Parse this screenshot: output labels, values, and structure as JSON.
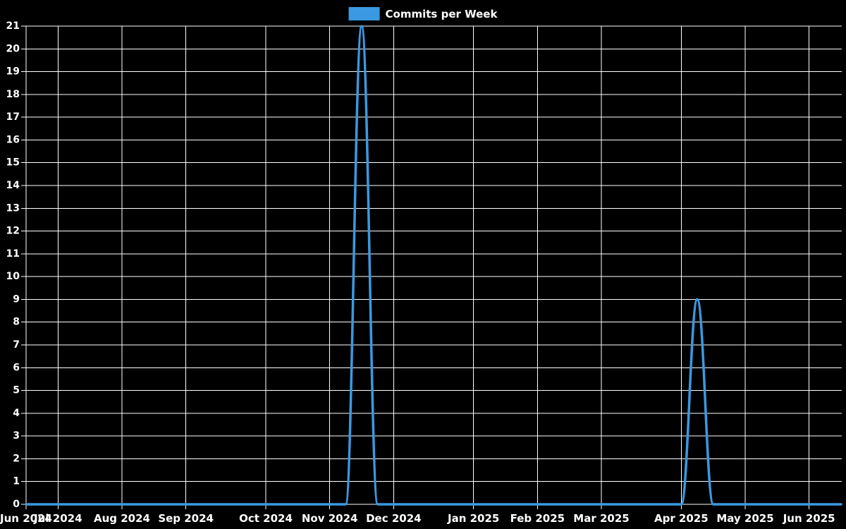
{
  "chart_data": {
    "type": "line",
    "title": "Commits per Week",
    "legend": {
      "label": "Commits per Week",
      "position": "top-center"
    },
    "background_color": "#000000",
    "grid_color": "#ffffff",
    "text_color": "#ffffff",
    "grid": "on",
    "series": [
      {
        "name": "Commits per Week",
        "color": "#3b99e1",
        "line_width": 3.5,
        "values": [
          0,
          0,
          0,
          0,
          0,
          0,
          0,
          0,
          0,
          0,
          0,
          0,
          0,
          0,
          0,
          0,
          0,
          0,
          0,
          0,
          0,
          21,
          0,
          0,
          0,
          0,
          0,
          0,
          0,
          0,
          0,
          0,
          0,
          0,
          0,
          0,
          0,
          0,
          0,
          0,
          0,
          0,
          9,
          0,
          0,
          0,
          0,
          0,
          0,
          0,
          0,
          0
        ]
      }
    ],
    "x_axis": {
      "unit": "week",
      "point_count": 52,
      "ticks": [
        {
          "label": "Jun 2024",
          "week_index": 0
        },
        {
          "label": "Jul 2024",
          "week_index": 2
        },
        {
          "label": "Aug 2024",
          "week_index": 6
        },
        {
          "label": "Sep 2024",
          "week_index": 10
        },
        {
          "label": "Oct 2024",
          "week_index": 15
        },
        {
          "label": "Nov 2024",
          "week_index": 19
        },
        {
          "label": "Dec 2024",
          "week_index": 23
        },
        {
          "label": "Jan 2025",
          "week_index": 28
        },
        {
          "label": "Feb 2025",
          "week_index": 32
        },
        {
          "label": "Mar 2025",
          "week_index": 36
        },
        {
          "label": "Apr 2025",
          "week_index": 41
        },
        {
          "label": "May 2025",
          "week_index": 45
        },
        {
          "label": "Jun 2025",
          "week_index": 49
        }
      ]
    },
    "y_axis": {
      "min": 0,
      "max": 21,
      "step": 1
    }
  }
}
